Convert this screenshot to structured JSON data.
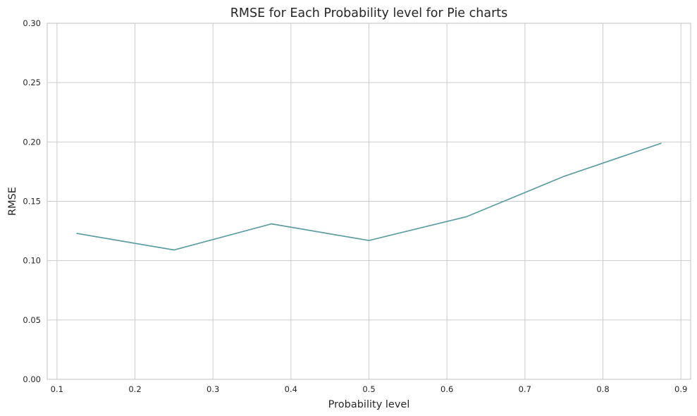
{
  "chart_data": {
    "type": "line",
    "title": "RMSE for Each Probability level for Pie charts",
    "xlabel": "Probability level",
    "ylabel": "RMSE",
    "xlim": [
      0.0875,
      0.9125
    ],
    "ylim": [
      0.0,
      0.3
    ],
    "xticks": [
      0.1,
      0.2,
      0.3,
      0.4,
      0.5,
      0.6,
      0.7,
      0.8,
      0.9
    ],
    "xtick_labels": [
      "0.1",
      "0.2",
      "0.3",
      "0.4",
      "0.5",
      "0.6",
      "0.7",
      "0.8",
      "0.9"
    ],
    "yticks": [
      0.0,
      0.05,
      0.1,
      0.15,
      0.2,
      0.25,
      0.3
    ],
    "ytick_labels": [
      "0.00",
      "0.05",
      "0.10",
      "0.15",
      "0.20",
      "0.25",
      "0.30"
    ],
    "grid": true,
    "legend": false,
    "line_color": "#5f9ea0",
    "grid_color": "#cccccc",
    "series": [
      {
        "x": [
          0.125,
          0.25,
          0.375,
          0.5,
          0.625,
          0.75,
          0.875
        ],
        "values": [
          0.123,
          0.109,
          0.131,
          0.117,
          0.137,
          0.171,
          0.199
        ]
      }
    ]
  }
}
